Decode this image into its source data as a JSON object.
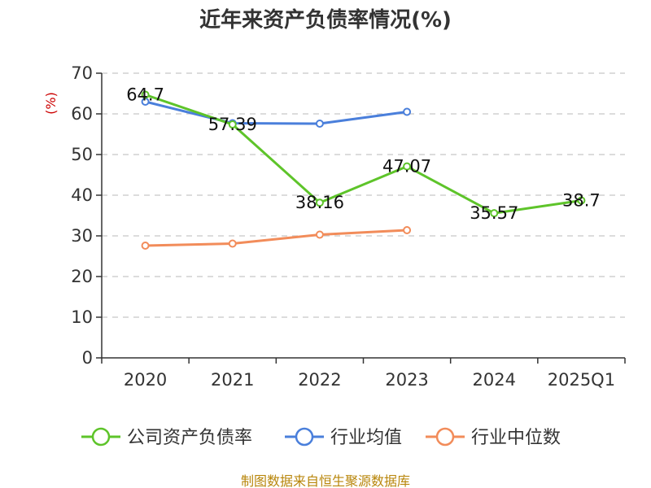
{
  "chart_data": {
    "type": "line",
    "title": "近年来资产负债率情况(%)",
    "ylabel": "(%)",
    "xlabel": "",
    "categories": [
      "2020",
      "2021",
      "2022",
      "2023",
      "2024",
      "2025Q1"
    ],
    "ylim": [
      0,
      70
    ],
    "yticks": [
      0,
      10,
      20,
      30,
      40,
      50,
      60,
      70
    ],
    "grid": true,
    "legend_position": "bottom",
    "series": [
      {
        "name": "公司资产负债率",
        "color": "#5ec42a",
        "values": [
          64.7,
          57.39,
          38.16,
          47.07,
          35.57,
          38.7
        ],
        "labels": [
          "64.7",
          "57.39",
          "38.16",
          "47.07",
          "35.57",
          "38.7"
        ]
      },
      {
        "name": "行业均值",
        "color": "#4a7fdb",
        "values": [
          63.0,
          57.7,
          57.6,
          60.5,
          null,
          null
        ]
      },
      {
        "name": "行业中位数",
        "color": "#f28c5a",
        "values": [
          27.6,
          28.1,
          30.3,
          31.4,
          null,
          null
        ]
      }
    ]
  },
  "footer": {
    "source": "制图数据来自恒生聚源数据库"
  }
}
